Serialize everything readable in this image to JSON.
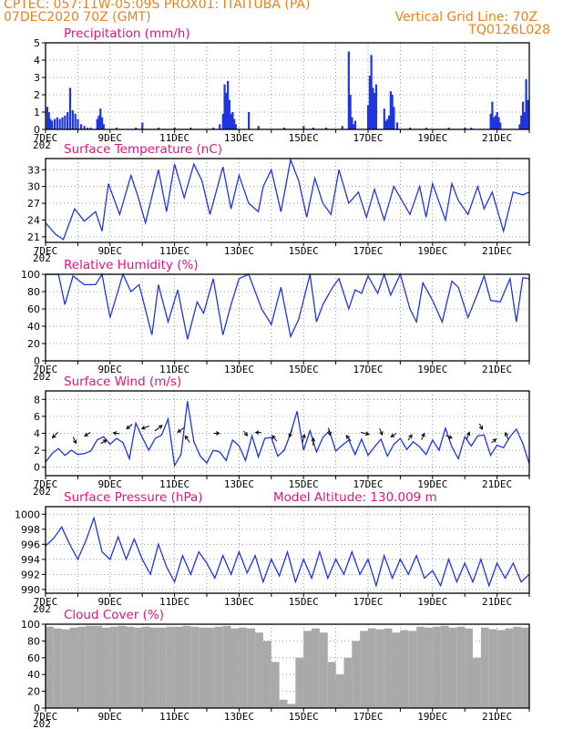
{
  "header": {
    "line1": "CPTEC:   057:11W-05:09S   PROX01: ITAITUBA (PA)",
    "line2_left": "07DEC2020 70Z (GMT)",
    "line2_right": "Vertical Grid Line: 70Z",
    "line3_right": "TQ0126L028"
  },
  "colors": {
    "title": "#e0147e",
    "header": "#e8821e",
    "series": "#1f35e0",
    "cloud": "#a9a9a9",
    "grid": "#808080"
  },
  "x_axis": {
    "labels": [
      "7DEC",
      "9DEC",
      "11DEC",
      "13DEC",
      "15DEC",
      "17DEC",
      "19DEC",
      "21DEC"
    ],
    "under_first": "202"
  },
  "chart_data": [
    {
      "type": "bar",
      "title": "Precipitation (mm/h)",
      "ylim": [
        0,
        5
      ],
      "yticks": [
        "0",
        "1",
        "2",
        "3",
        "4",
        "5"
      ],
      "x_day_range": [
        7,
        22
      ],
      "series": [
        {
          "x": [
            7.05,
            7.1,
            7.15,
            7.2,
            7.28,
            7.36,
            7.44,
            7.52,
            7.6,
            7.68,
            7.76,
            7.84,
            7.92,
            8.0,
            8.1,
            8.2,
            8.3,
            8.4,
            8.6,
            8.65,
            8.7,
            8.75,
            8.8,
            9.2,
            9.8,
            10.0,
            10.5,
            11.0,
            11.5,
            12.2,
            12.4,
            12.5,
            12.55,
            12.6,
            12.65,
            12.7,
            12.75,
            12.8,
            12.85,
            12.9,
            13.3,
            13.6,
            14.4,
            15.0,
            15.3,
            15.7,
            16.2,
            16.4,
            16.45,
            16.5,
            16.55,
            16.6,
            17.0,
            17.05,
            17.1,
            17.15,
            17.2,
            17.25,
            17.5,
            17.55,
            17.6,
            17.65,
            17.7,
            17.75,
            17.8,
            17.9,
            18.3,
            18.8,
            19.5,
            20.0,
            20.2,
            20.8,
            20.85,
            20.9,
            20.95,
            21.0,
            21.05,
            21.1,
            21.7,
            21.75,
            21.8,
            21.85,
            21.9,
            21.95
          ],
          "values": [
            1.3,
            1.0,
            0.6,
            0.5,
            0.6,
            0.7,
            0.6,
            0.7,
            0.8,
            1.0,
            2.4,
            1.1,
            0.9,
            0.6,
            0.3,
            0.2,
            0.1,
            0.1,
            0.6,
            0.8,
            1.2,
            0.7,
            0.3,
            0.1,
            0.1,
            0.4,
            0.1,
            0.1,
            0.1,
            0.1,
            0.3,
            0.9,
            2.6,
            2.1,
            2.8,
            1.7,
            0.9,
            1.0,
            0.6,
            0.3,
            1.0,
            0.2,
            0.1,
            0.2,
            0.1,
            0.1,
            0.2,
            4.5,
            2.0,
            0.7,
            0.3,
            0.5,
            1.4,
            3.1,
            4.3,
            2.4,
            2.1,
            2.6,
            1.2,
            0.5,
            0.6,
            0.8,
            2.2,
            2.0,
            1.3,
            0.4,
            0.1,
            0.1,
            0.1,
            0.1,
            0.1,
            0.9,
            1.6,
            0.7,
            0.8,
            1.0,
            0.7,
            0.4,
            0.3,
            0.8,
            1.6,
            1.0,
            2.9,
            1.7
          ]
        }
      ]
    },
    {
      "type": "line",
      "title": "Surface Temperature (nC)",
      "ylim": [
        20,
        35
      ],
      "yticks": [
        "21",
        "24",
        "27",
        "30",
        "33"
      ],
      "ytick_values": [
        21,
        24,
        27,
        30,
        33
      ],
      "series": [
        {
          "x": [
            7.0,
            7.3,
            7.55,
            7.9,
            8.2,
            8.55,
            8.75,
            8.95,
            9.3,
            9.65,
            9.85,
            10.1,
            10.5,
            10.75,
            11.0,
            11.3,
            11.6,
            11.85,
            12.1,
            12.5,
            12.75,
            13.0,
            13.3,
            13.6,
            13.75,
            14.0,
            14.3,
            14.6,
            14.85,
            15.1,
            15.35,
            15.6,
            15.85,
            16.1,
            16.4,
            16.7,
            16.95,
            17.2,
            17.5,
            17.8,
            18.0,
            18.3,
            18.6,
            18.8,
            19.0,
            19.4,
            19.6,
            19.8,
            20.1,
            20.4,
            20.6,
            20.85,
            21.2,
            21.5,
            21.8,
            22.0
          ],
          "values": [
            23.5,
            21.5,
            20.5,
            26.0,
            23.8,
            25.5,
            22.0,
            30.5,
            25.0,
            32.0,
            28.5,
            23.5,
            33.0,
            25.5,
            34.0,
            28.0,
            34.0,
            31.0,
            25.0,
            33.5,
            26.0,
            32.0,
            27.0,
            25.5,
            30.0,
            33.0,
            25.5,
            34.8,
            31.0,
            24.5,
            31.5,
            27.0,
            25.0,
            33.0,
            27.0,
            29.0,
            24.5,
            29.5,
            24.0,
            30.0,
            28.0,
            25.0,
            30.0,
            24.5,
            30.5,
            24.0,
            30.5,
            27.5,
            25.0,
            30.0,
            26.0,
            29.0,
            22.0,
            29.0,
            28.5,
            29.0
          ]
        }
      ]
    },
    {
      "type": "line",
      "title": "Relative Humidity (%)",
      "ylim": [
        0,
        100
      ],
      "yticks": [
        "0",
        "20",
        "40",
        "60",
        "80",
        "100"
      ],
      "ytick_values": [
        0,
        20,
        40,
        60,
        80,
        100
      ],
      "series": [
        {
          "x": [
            7.0,
            7.4,
            7.6,
            7.85,
            8.2,
            8.55,
            8.75,
            9.0,
            9.4,
            9.65,
            9.9,
            10.3,
            10.5,
            10.8,
            11.1,
            11.4,
            11.7,
            11.9,
            12.2,
            12.5,
            12.75,
            13.0,
            13.3,
            13.5,
            13.7,
            14.0,
            14.3,
            14.6,
            14.85,
            15.2,
            15.4,
            15.6,
            15.9,
            16.1,
            16.4,
            16.6,
            16.8,
            17.0,
            17.3,
            17.5,
            17.7,
            18.0,
            18.3,
            18.5,
            18.7,
            19.0,
            19.3,
            19.6,
            19.8,
            20.1,
            20.4,
            20.6,
            20.8,
            21.1,
            21.4,
            21.6,
            21.8,
            22.0
          ],
          "values": [
            100,
            100,
            65,
            98,
            88,
            88,
            100,
            50,
            100,
            80,
            88,
            30,
            88,
            45,
            82,
            25,
            68,
            55,
            95,
            30,
            65,
            95,
            100,
            80,
            60,
            42,
            85,
            28,
            48,
            100,
            45,
            65,
            85,
            95,
            60,
            82,
            78,
            98,
            78,
            100,
            76,
            100,
            60,
            45,
            90,
            70,
            45,
            92,
            85,
            50,
            78,
            98,
            70,
            68,
            95,
            45,
            96,
            95
          ]
        }
      ]
    },
    {
      "type": "line",
      "title": "Surface Wind (m/s)",
      "ylim": [
        -1,
        9
      ],
      "yticks": [
        "0",
        "2",
        "4",
        "6",
        "8"
      ],
      "ytick_values": [
        0,
        2,
        4,
        6,
        8
      ],
      "series": [
        {
          "x": [
            7.0,
            7.2,
            7.4,
            7.6,
            7.8,
            8.0,
            8.2,
            8.4,
            8.6,
            8.8,
            9.0,
            9.2,
            9.4,
            9.6,
            9.8,
            10.0,
            10.2,
            10.4,
            10.6,
            10.8,
            11.0,
            11.2,
            11.4,
            11.6,
            11.8,
            12.0,
            12.2,
            12.4,
            12.6,
            12.8,
            13.0,
            13.2,
            13.4,
            13.6,
            13.8,
            14.0,
            14.2,
            14.4,
            14.6,
            14.8,
            15.0,
            15.2,
            15.4,
            15.6,
            15.8,
            16.0,
            16.2,
            16.4,
            16.6,
            16.8,
            17.0,
            17.2,
            17.4,
            17.6,
            17.8,
            18.0,
            18.2,
            18.4,
            18.6,
            18.8,
            19.0,
            19.2,
            19.4,
            19.6,
            19.8,
            20.0,
            20.2,
            20.4,
            20.6,
            20.8,
            21.0,
            21.2,
            21.4,
            21.6,
            21.8,
            22.0
          ],
          "values": [
            0.6,
            1.6,
            2.2,
            1.4,
            2.0,
            1.5,
            1.6,
            1.9,
            3.2,
            3.6,
            2.7,
            3.4,
            2.9,
            1.0,
            5.2,
            3.5,
            2.0,
            3.4,
            3.8,
            5.7,
            0.2,
            1.5,
            7.8,
            3.0,
            1.3,
            0.5,
            2.0,
            1.8,
            0.8,
            3.2,
            2.5,
            0.8,
            3.7,
            1.2,
            3.4,
            3.5,
            1.3,
            2.0,
            4.0,
            6.6,
            2.0,
            4.3,
            1.8,
            3.5,
            4.3,
            1.9,
            2.6,
            3.2,
            1.5,
            3.3,
            1.4,
            2.4,
            3.3,
            1.3,
            2.7,
            3.4,
            2.1,
            3.0,
            2.4,
            1.5,
            3.2,
            2.0,
            4.6,
            2.4,
            1.0,
            3.6,
            2.5,
            3.7,
            3.8,
            1.4,
            2.6,
            2.3,
            3.6,
            4.5,
            2.8,
            0.4
          ]
        }
      ]
    },
    {
      "type": "line",
      "title": "Surface Pressure (hPa)",
      "subtitle": "Model Altitude: 130.009 m",
      "ylim": [
        989.5,
        1001
      ],
      "yticks": [
        "990",
        "992",
        "994",
        "996",
        "998",
        "1000"
      ],
      "ytick_values": [
        990,
        992,
        994,
        996,
        998,
        1000
      ],
      "series": [
        {
          "x": [
            7.0,
            7.25,
            7.5,
            7.75,
            8.0,
            8.25,
            8.5,
            8.75,
            9.0,
            9.25,
            9.5,
            9.75,
            10.0,
            10.25,
            10.5,
            10.75,
            11.0,
            11.25,
            11.5,
            11.75,
            12.0,
            12.25,
            12.5,
            12.75,
            13.0,
            13.25,
            13.5,
            13.75,
            14.0,
            14.25,
            14.5,
            14.75,
            15.0,
            15.25,
            15.5,
            15.75,
            16.0,
            16.25,
            16.5,
            16.75,
            17.0,
            17.25,
            17.5,
            17.75,
            18.0,
            18.25,
            18.5,
            18.75,
            19.0,
            19.25,
            19.5,
            19.75,
            20.0,
            20.25,
            20.5,
            20.75,
            21.0,
            21.25,
            21.5,
            21.75,
            22.0
          ],
          "values": [
            995.8,
            996.8,
            998.3,
            996.0,
            994.0,
            996.5,
            999.5,
            995.0,
            994.0,
            997.0,
            994.0,
            996.7,
            994.0,
            992.0,
            996.0,
            993.0,
            991.0,
            994.5,
            992.0,
            995.0,
            993.5,
            991.5,
            994.5,
            992.0,
            995.0,
            992.2,
            994.5,
            991.0,
            994.0,
            991.8,
            995.0,
            991.0,
            994.0,
            991.5,
            995.0,
            991.5,
            994.0,
            992.0,
            995.0,
            992.0,
            994.0,
            990.5,
            994.5,
            991.5,
            994.0,
            992.0,
            994.5,
            991.5,
            992.5,
            990.5,
            994.0,
            991.0,
            993.5,
            991.0,
            994.0,
            990.5,
            993.5,
            991.5,
            993.5,
            991.0,
            992.0
          ]
        }
      ]
    },
    {
      "type": "bar",
      "title": "Cloud Cover (%)",
      "ylim": [
        0,
        100
      ],
      "yticks": [
        "0",
        "20",
        "40",
        "60",
        "80",
        "100"
      ],
      "ytick_values": [
        0,
        20,
        40,
        60,
        80,
        100
      ],
      "x_day_range": [
        7,
        22
      ],
      "series": [
        {
          "x": [
            7.0,
            7.25,
            7.5,
            7.75,
            8.0,
            8.25,
            8.5,
            8.75,
            9.0,
            9.25,
            9.5,
            9.75,
            10.0,
            10.25,
            10.5,
            10.75,
            11.0,
            11.25,
            11.5,
            11.75,
            12.0,
            12.25,
            12.5,
            12.75,
            13.0,
            13.25,
            13.5,
            13.75,
            14.0,
            14.25,
            14.5,
            14.75,
            15.0,
            15.25,
            15.5,
            15.75,
            16.0,
            16.25,
            16.5,
            16.75,
            17.0,
            17.25,
            17.5,
            17.75,
            18.0,
            18.25,
            18.5,
            18.75,
            19.0,
            19.25,
            19.5,
            19.75,
            20.0,
            20.25,
            20.5,
            20.75,
            21.0,
            21.25,
            21.5,
            21.75,
            22.0
          ],
          "values": [
            97,
            95,
            94,
            96,
            97,
            98,
            98,
            96,
            97,
            98,
            97,
            96,
            97,
            96,
            96,
            97,
            97,
            98,
            97,
            96,
            96,
            97,
            98,
            95,
            96,
            95,
            90,
            80,
            55,
            10,
            5,
            60,
            92,
            95,
            90,
            55,
            40,
            60,
            80,
            92,
            95,
            94,
            95,
            90,
            93,
            92,
            97,
            96,
            97,
            98,
            96,
            97,
            95,
            60,
            96,
            94,
            93,
            95,
            97,
            96,
            97
          ]
        }
      ]
    }
  ]
}
